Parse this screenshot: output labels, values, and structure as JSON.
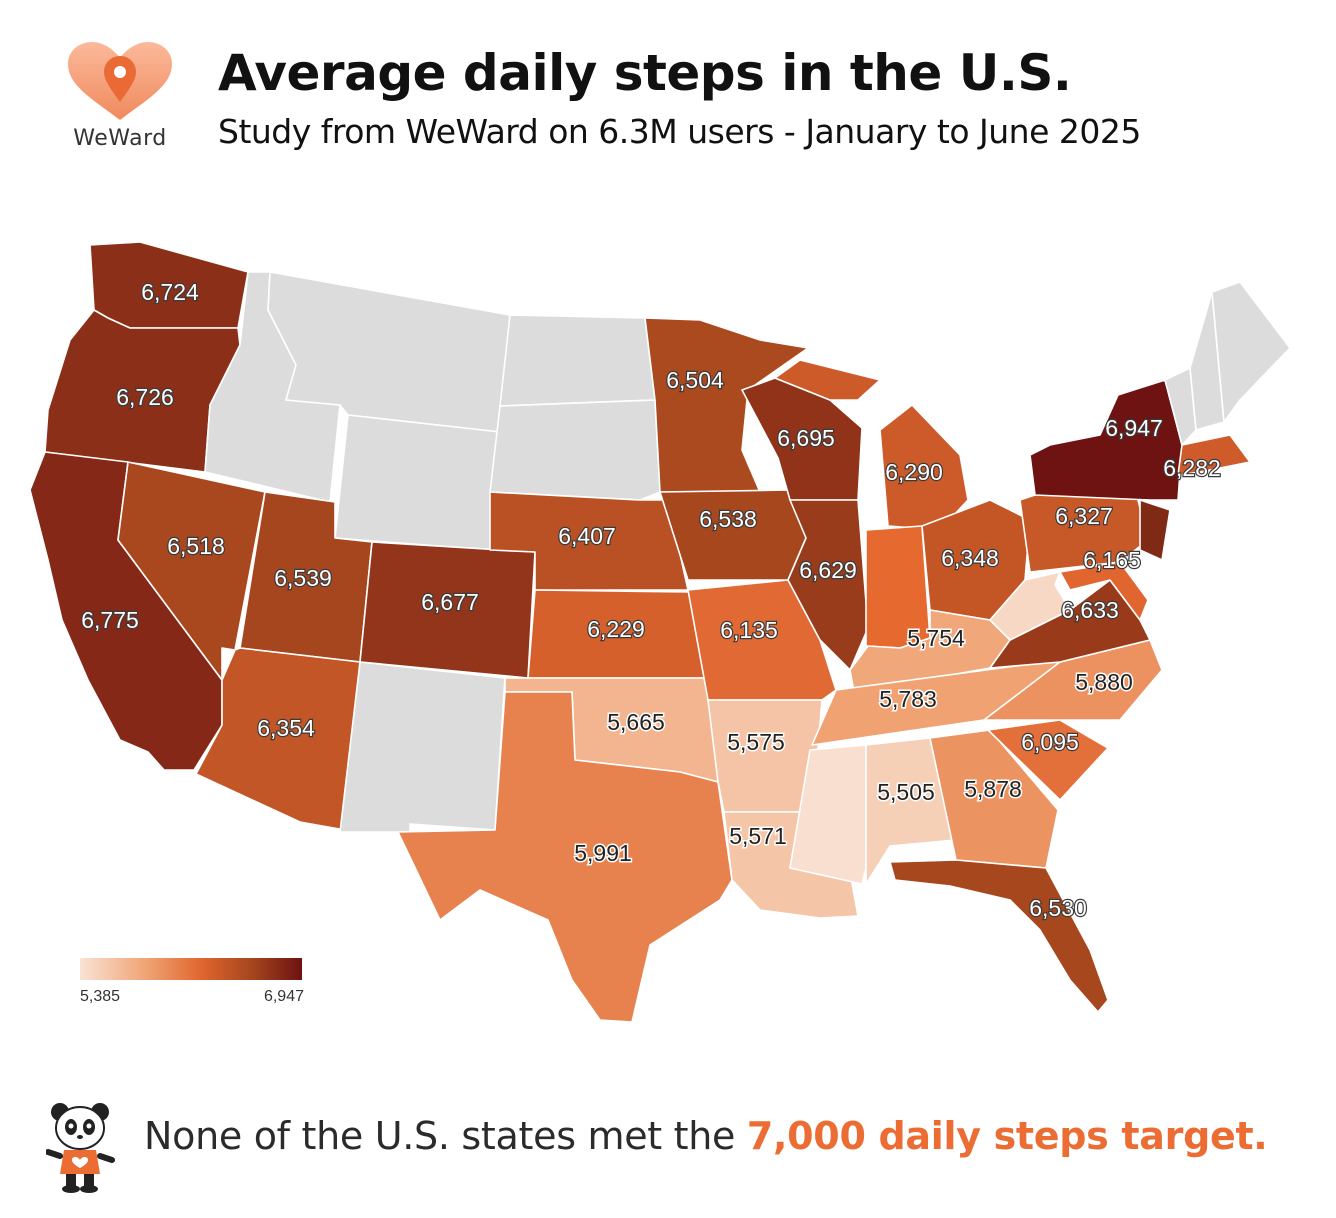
{
  "header": {
    "logo_text": "WeWard",
    "title": "Average daily steps in the U.S.",
    "subtitle": "Study from WeWard on 6.3M users - January to June 2025"
  },
  "colors": {
    "no_data": "#dcdcdc",
    "scale": [
      "#f9e3d5",
      "#f0a374",
      "#e0652e",
      "#a3451d",
      "#6e1212"
    ],
    "accent": "#ec6d33"
  },
  "map_data": {
    "metric": "Average daily steps",
    "states": [
      {
        "state": "WA",
        "value": 6724,
        "label": "6,724"
      },
      {
        "state": "OR",
        "value": 6726,
        "label": "6,726"
      },
      {
        "state": "CA",
        "value": 6775,
        "label": "6,775"
      },
      {
        "state": "NV",
        "value": 6518,
        "label": "6,518"
      },
      {
        "state": "UT",
        "value": 6539,
        "label": "6,539"
      },
      {
        "state": "AZ",
        "value": 6354,
        "label": "6,354"
      },
      {
        "state": "CO",
        "value": 6677,
        "label": "6,677"
      },
      {
        "state": "NE",
        "value": 6407,
        "label": "6,407"
      },
      {
        "state": "KS",
        "value": 6229,
        "label": "6,229"
      },
      {
        "state": "OK",
        "value": 5665,
        "label": "5,665"
      },
      {
        "state": "TX",
        "value": 5991,
        "label": "5,991"
      },
      {
        "state": "MN",
        "value": 6504,
        "label": "6,504"
      },
      {
        "state": "IA",
        "value": 6538,
        "label": "6,538"
      },
      {
        "state": "MO",
        "value": 6135,
        "label": "6,135"
      },
      {
        "state": "AR",
        "value": 5575,
        "label": "5,575"
      },
      {
        "state": "LA",
        "value": 5571,
        "label": "5,571"
      },
      {
        "state": "WI",
        "value": 6695,
        "label": "6,695"
      },
      {
        "state": "IL",
        "value": 6629,
        "label": "6,629"
      },
      {
        "state": "MI",
        "value": 6290,
        "label": "6,290"
      },
      {
        "state": "IN",
        "value": null,
        "label": ""
      },
      {
        "state": "OH",
        "value": 6348,
        "label": "6,348"
      },
      {
        "state": "KY",
        "value": 5754,
        "label": "5,754"
      },
      {
        "state": "TN",
        "value": 5783,
        "label": "5,783"
      },
      {
        "state": "MS",
        "value": null,
        "label": ""
      },
      {
        "state": "AL",
        "value": 5505,
        "label": "5,505"
      },
      {
        "state": "GA",
        "value": 5878,
        "label": "5,878"
      },
      {
        "state": "FL",
        "value": 6530,
        "label": "6,530"
      },
      {
        "state": "SC",
        "value": 6095,
        "label": "6,095"
      },
      {
        "state": "NC",
        "value": 5880,
        "label": "5,880"
      },
      {
        "state": "VA",
        "value": 6633,
        "label": "6,633"
      },
      {
        "state": "WV",
        "value": null,
        "label": ""
      },
      {
        "state": "MD",
        "value": 6165,
        "label": "6,165"
      },
      {
        "state": "PA",
        "value": 6327,
        "label": "6,327"
      },
      {
        "state": "NY",
        "value": 6947,
        "label": "6,947"
      },
      {
        "state": "MA",
        "value": 6282,
        "label": "6,282"
      },
      {
        "state": "NJ",
        "value": null,
        "label": ""
      },
      {
        "state": "ID",
        "value": null,
        "label": ""
      },
      {
        "state": "MT",
        "value": null,
        "label": ""
      },
      {
        "state": "WY",
        "value": null,
        "label": ""
      },
      {
        "state": "ND",
        "value": null,
        "label": ""
      },
      {
        "state": "SD",
        "value": null,
        "label": ""
      },
      {
        "state": "NM",
        "value": null,
        "label": ""
      },
      {
        "state": "ME",
        "value": null,
        "label": ""
      },
      {
        "state": "VT",
        "value": null,
        "label": ""
      },
      {
        "state": "NH",
        "value": null,
        "label": ""
      }
    ]
  },
  "legend": {
    "min_label": "5,385",
    "max_label": "6,947",
    "min": 5385,
    "max": 6947
  },
  "footer": {
    "text_before": "None of the U.S. states met the ",
    "highlight": "7,000 daily steps target."
  }
}
